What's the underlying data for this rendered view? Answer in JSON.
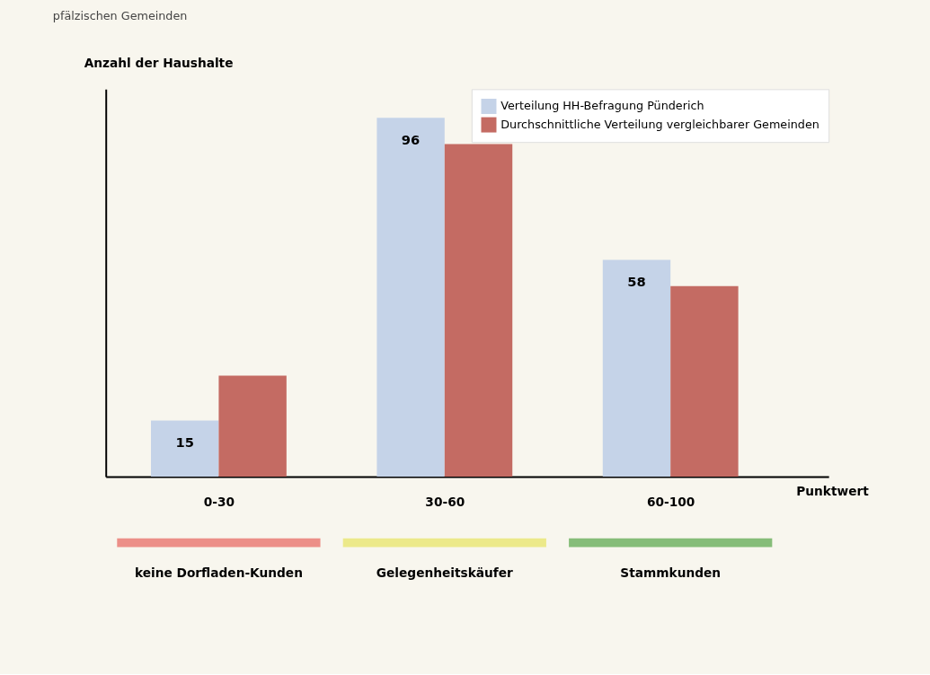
{
  "chart_data": {
    "type": "bar",
    "subtitle": "pfälzischen Gemeinden",
    "xlabel": "Punktwert",
    "ylabel": "Anzahl der Haushalte",
    "categories": [
      "0-30",
      "30-60",
      "60-100"
    ],
    "series": [
      {
        "name": "Verteilung HH-Befragung Pünderich",
        "color": "#c5d3e8",
        "values": [
          15,
          96,
          58
        ],
        "value_labels": [
          "15",
          "96",
          "58"
        ]
      },
      {
        "name": "Durchschnittliche Verteilung vergleichbarer Gemeinden",
        "color": "#c46b63",
        "values": [
          27,
          89,
          51
        ]
      }
    ],
    "annotations": [
      "keine Dorfladen-Kunden",
      "Gelegenheitskäufer",
      "Stammkunden"
    ],
    "legend": "top right",
    "grid": false
  }
}
